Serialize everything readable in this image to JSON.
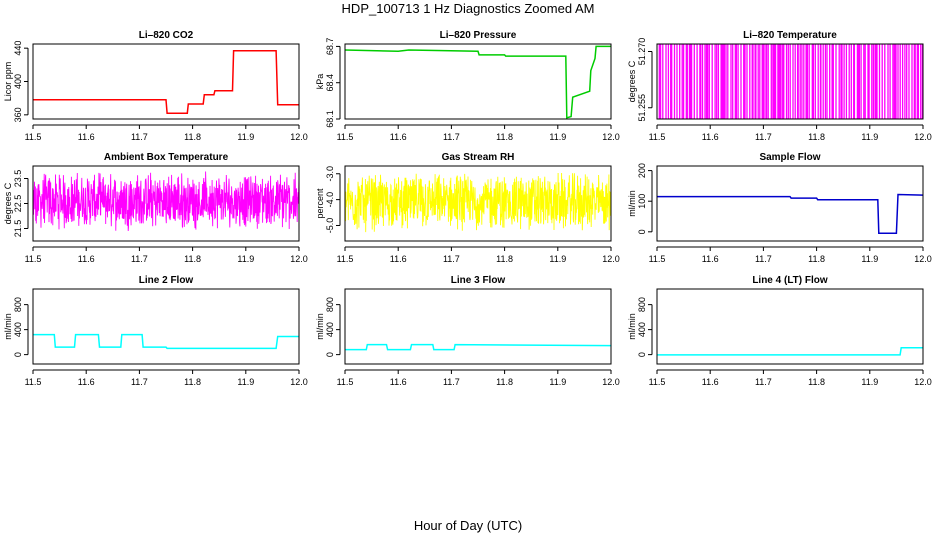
{
  "figure": {
    "title": "HDP_100713  1 Hz Diagnostics Zoomed AM",
    "xlabel": "Hour of Day (UTC)"
  },
  "chart_data": [
    {
      "type": "line",
      "title": "Li–820 CO2",
      "ylabel": "Licor ppm",
      "color": "#ff0000",
      "xlim": [
        11.5,
        12.0
      ],
      "ylim": [
        355,
        445
      ],
      "xticks": [
        "11.5",
        "11.6",
        "11.7",
        "11.8",
        "11.9",
        "12.0"
      ],
      "yticks": [
        "360",
        "400",
        "440"
      ],
      "series": [
        {
          "x": [
            11.5,
            11.75,
            11.752,
            11.79,
            11.792,
            11.82,
            11.822,
            11.84,
            11.842,
            11.875,
            11.877,
            11.957,
            11.96,
            12.0
          ],
          "y": [
            378,
            378,
            362,
            362,
            373,
            373,
            384,
            384,
            389,
            389,
            437,
            437,
            372,
            372
          ]
        }
      ]
    },
    {
      "type": "line",
      "title": "Li–820 Pressure",
      "ylabel": "kPa",
      "color": "#00cc00",
      "xlim": [
        11.5,
        12.0
      ],
      "ylim": [
        68.1,
        68.72
      ],
      "xticks": [
        "11.5",
        "11.6",
        "11.7",
        "11.8",
        "11.9",
        "12.0"
      ],
      "yticks": [
        "68.1",
        "68.4",
        "68.7"
      ],
      "series": [
        {
          "x": [
            11.5,
            11.6,
            11.62,
            11.75,
            11.752,
            11.8,
            11.802,
            11.915,
            11.917,
            11.925,
            11.928,
            11.96,
            11.962,
            11.97,
            11.972,
            12.0
          ],
          "y": [
            68.67,
            68.66,
            68.67,
            68.66,
            68.63,
            68.63,
            68.62,
            68.62,
            68.11,
            68.12,
            68.28,
            68.33,
            68.5,
            68.6,
            68.7,
            68.7
          ]
        }
      ]
    },
    {
      "type": "line",
      "title": "Li–820 Temperature",
      "ylabel": "degrees C",
      "color": "#ff00ff",
      "xlim": [
        11.5,
        12.0
      ],
      "ylim": [
        51.252,
        51.272
      ],
      "xticks": [
        "11.5",
        "11.6",
        "11.7",
        "11.8",
        "11.9",
        "12.0"
      ],
      "yticks": [
        "51.255",
        "51.270"
      ],
      "levels": [
        51.252,
        51.272
      ],
      "series": []
    },
    {
      "type": "line",
      "title": "Ambient Box Temperature",
      "ylabel": "degrees C",
      "color": "#ff00ff",
      "xlim": [
        11.5,
        12.0
      ],
      "ylim": [
        21.0,
        24.0
      ],
      "xticks": [
        "11.5",
        "11.6",
        "11.7",
        "11.8",
        "11.9",
        "12.0"
      ],
      "yticks": [
        "21.5",
        "22.5",
        "23.5"
      ],
      "noise": {
        "mean": 22.6,
        "spread": 1.1
      },
      "series": []
    },
    {
      "type": "line",
      "title": "Gas Stream RH",
      "ylabel": "percent",
      "color": "#ffff00",
      "xlim": [
        11.5,
        12.0
      ],
      "ylim": [
        -5.6,
        -2.7
      ],
      "xticks": [
        "11.5",
        "11.6",
        "11.7",
        "11.8",
        "11.9",
        "12.0"
      ],
      "yticks": [
        "-5.0",
        "-4.0",
        "-3.0"
      ],
      "noise": {
        "mean": -4.1,
        "spread": 1.1
      },
      "series": []
    },
    {
      "type": "line",
      "title": "Sample Flow",
      "ylabel": "ml/min",
      "color": "#0000cc",
      "xlim": [
        11.5,
        12.0
      ],
      "ylim": [
        -30,
        215
      ],
      "xticks": [
        "11.5",
        "11.6",
        "11.7",
        "11.8",
        "11.9",
        "12.0"
      ],
      "yticks": [
        "0",
        "100",
        "200"
      ],
      "series": [
        {
          "x": [
            11.5,
            11.75,
            11.752,
            11.8,
            11.802,
            11.915,
            11.917,
            11.95,
            11.953,
            12.0
          ],
          "y": [
            115,
            115,
            110,
            110,
            105,
            105,
            -5,
            -5,
            122,
            120
          ]
        }
      ]
    },
    {
      "type": "line",
      "title": "Line 2 Flow",
      "ylabel": "ml/min",
      "color": "#00ffff",
      "xlim": [
        11.5,
        12.0
      ],
      "ylim": [
        -150,
        1050
      ],
      "xticks": [
        "11.5",
        "11.6",
        "11.7",
        "11.8",
        "11.9",
        "12.0"
      ],
      "yticks": [
        "0",
        "400",
        "800"
      ],
      "series": [
        {
          "x": [
            11.5,
            11.54,
            11.542,
            11.578,
            11.58,
            11.623,
            11.625,
            11.665,
            11.667,
            11.705,
            11.707,
            11.75,
            11.752,
            11.957,
            11.96,
            12.0
          ],
          "y": [
            320,
            320,
            120,
            120,
            320,
            320,
            120,
            120,
            320,
            320,
            120,
            120,
            100,
            100,
            290,
            290
          ]
        }
      ]
    },
    {
      "type": "line",
      "title": "Line 3 Flow",
      "ylabel": "ml/min",
      "color": "#00ffff",
      "xlim": [
        11.5,
        12.0
      ],
      "ylim": [
        -150,
        1050
      ],
      "xticks": [
        "11.5",
        "11.6",
        "11.7",
        "11.8",
        "11.9",
        "12.0"
      ],
      "yticks": [
        "0",
        "400",
        "800"
      ],
      "series": [
        {
          "x": [
            11.5,
            11.54,
            11.542,
            11.578,
            11.58,
            11.623,
            11.625,
            11.665,
            11.667,
            11.705,
            11.707,
            12.0
          ],
          "y": [
            80,
            80,
            160,
            160,
            80,
            80,
            160,
            160,
            80,
            80,
            160,
            145
          ]
        }
      ]
    },
    {
      "type": "line",
      "title": "Line 4 (LT) Flow",
      "ylabel": "ml/min",
      "color": "#00ffff",
      "xlim": [
        11.5,
        12.0
      ],
      "ylim": [
        -150,
        1050
      ],
      "xticks": [
        "11.5",
        "11.6",
        "11.7",
        "11.8",
        "11.9",
        "12.0"
      ],
      "yticks": [
        "0",
        "400",
        "800"
      ],
      "series": [
        {
          "x": [
            11.5,
            11.957,
            11.959,
            12.0
          ],
          "y": [
            -5,
            -5,
            110,
            110
          ]
        }
      ]
    }
  ]
}
